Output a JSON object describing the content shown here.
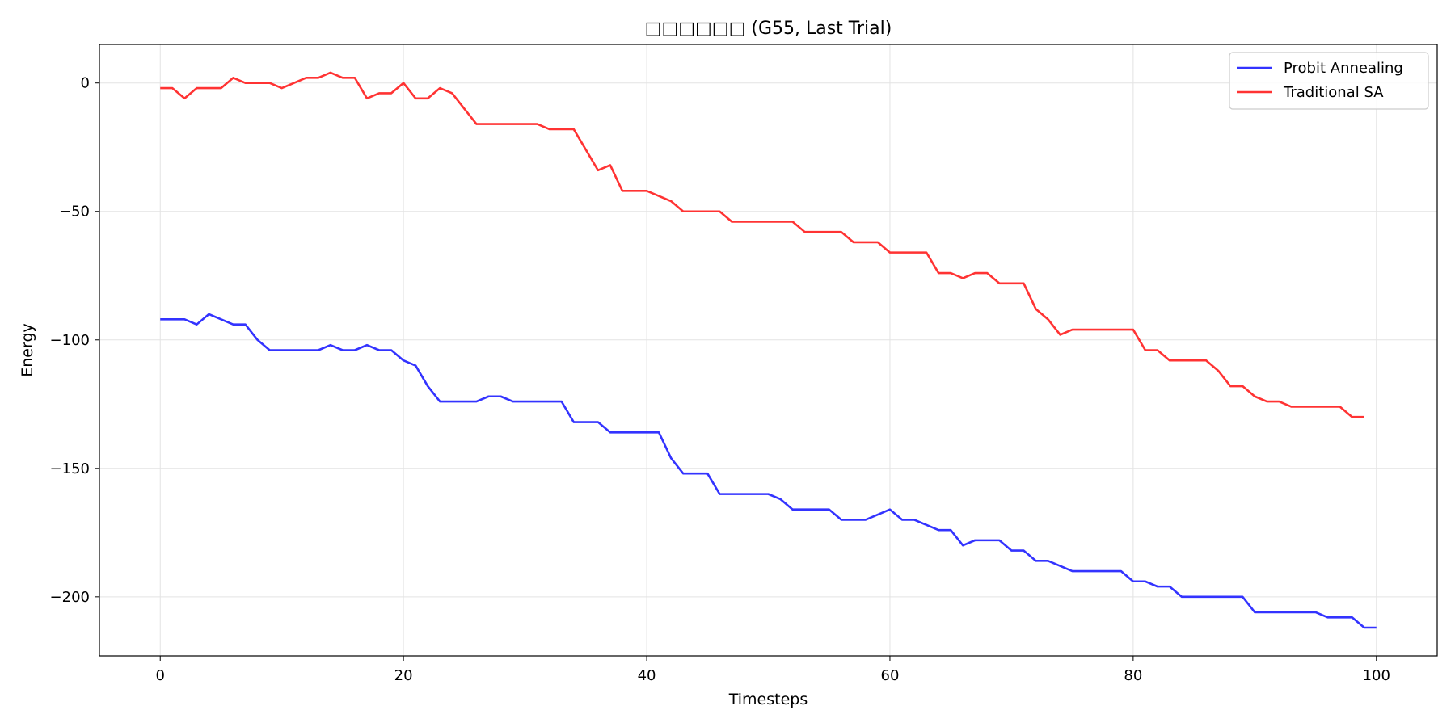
{
  "chart_data": {
    "type": "line",
    "title": "□□□□□□ (G55, Last Trial)",
    "xlabel": "Timesteps",
    "ylabel": "Energy",
    "xlim": [
      -5,
      105
    ],
    "ylim": [
      -223,
      15
    ],
    "xticks": [
      0,
      20,
      40,
      60,
      80,
      100
    ],
    "yticks": [
      0,
      -50,
      -100,
      -150,
      -200
    ],
    "ytick_labels": [
      "0",
      "−50",
      "−100",
      "−150",
      "−200"
    ],
    "grid": true,
    "legend_position": "top-right",
    "series": [
      {
        "name": "Probit Annealing",
        "color": "#3333ff",
        "x": [
          0,
          1,
          2,
          3,
          4,
          5,
          6,
          7,
          8,
          9,
          10,
          11,
          12,
          13,
          14,
          15,
          16,
          17,
          18,
          19,
          20,
          21,
          22,
          23,
          24,
          25,
          26,
          27,
          28,
          29,
          30,
          31,
          32,
          33,
          34,
          35,
          36,
          37,
          38,
          39,
          40,
          41,
          42,
          43,
          44,
          45,
          46,
          47,
          48,
          49,
          50,
          51,
          52,
          53,
          54,
          55,
          56,
          57,
          58,
          59,
          60,
          61,
          62,
          63,
          64,
          65,
          66,
          67,
          68,
          69,
          70,
          71,
          72,
          73,
          74,
          75,
          76,
          77,
          78,
          79,
          80,
          81,
          82,
          83,
          84,
          85,
          86,
          87,
          88,
          89,
          90,
          91,
          92,
          93,
          94,
          95,
          96,
          97,
          98,
          99,
          100
        ],
        "values": [
          -92,
          -92,
          -92,
          -94,
          -90,
          -92,
          -94,
          -94,
          -100,
          -104,
          -104,
          -104,
          -104,
          -104,
          -102,
          -104,
          -104,
          -102,
          -104,
          -104,
          -108,
          -110,
          -118,
          -124,
          -124,
          -124,
          -124,
          -122,
          -122,
          -124,
          -124,
          -124,
          -124,
          -124,
          -132,
          -132,
          -132,
          -136,
          -136,
          -136,
          -136,
          -136,
          -146,
          -152,
          -152,
          -152,
          -160,
          -160,
          -160,
          -160,
          -160,
          -162,
          -166,
          -166,
          -166,
          -166,
          -170,
          -170,
          -170,
          -168,
          -166,
          -170,
          -170,
          -172,
          -174,
          -174,
          -180,
          -178,
          -178,
          -178,
          -182,
          -182,
          -186,
          -186,
          -188,
          -190,
          -190,
          -190,
          -190,
          -190,
          -194,
          -194,
          -196,
          -196,
          -200,
          -200,
          -200,
          -200,
          -200,
          -200,
          -206,
          -206,
          -206,
          -206,
          -206,
          -206,
          -208,
          -208,
          -208,
          -212,
          -212
        ]
      },
      {
        "name": "Traditional SA",
        "color": "#ff3333",
        "x": [
          0,
          1,
          2,
          3,
          4,
          5,
          6,
          7,
          8,
          9,
          10,
          11,
          12,
          13,
          14,
          15,
          16,
          17,
          18,
          19,
          20,
          21,
          22,
          23,
          24,
          25,
          26,
          27,
          28,
          29,
          30,
          31,
          32,
          33,
          34,
          35,
          36,
          37,
          38,
          39,
          40,
          41,
          42,
          43,
          44,
          45,
          46,
          47,
          48,
          49,
          50,
          51,
          52,
          53,
          54,
          55,
          56,
          57,
          58,
          59,
          60,
          61,
          62,
          63,
          64,
          65,
          66,
          67,
          68,
          69,
          70,
          71,
          72,
          73,
          74,
          75,
          76,
          77,
          78,
          79,
          80,
          81,
          82,
          83,
          84,
          85,
          86,
          87,
          88,
          89,
          90,
          91,
          92,
          93,
          94,
          95,
          96,
          97,
          98,
          99
        ],
        "values": [
          -2,
          -2,
          -6,
          -2,
          -2,
          -2,
          2,
          0,
          0,
          0,
          -2,
          0,
          2,
          2,
          4,
          2,
          2,
          -6,
          -4,
          -4,
          0,
          -6,
          -6,
          -2,
          -4,
          -10,
          -16,
          -16,
          -16,
          -16,
          -16,
          -16,
          -18,
          -18,
          -18,
          -26,
          -34,
          -32,
          -42,
          -42,
          -42,
          -44,
          -46,
          -50,
          -50,
          -50,
          -50,
          -54,
          -54,
          -54,
          -54,
          -54,
          -54,
          -58,
          -58,
          -58,
          -58,
          -62,
          -62,
          -62,
          -66,
          -66,
          -66,
          -66,
          -74,
          -74,
          -76,
          -74,
          -74,
          -78,
          -78,
          -78,
          -88,
          -92,
          -98,
          -96,
          -96,
          -96,
          -96,
          -96,
          -96,
          -104,
          -104,
          -108,
          -108,
          -108,
          -108,
          -112,
          -118,
          -118,
          -122,
          -124,
          -124,
          -126,
          -126,
          -126,
          -126,
          -126,
          -130,
          -130
        ]
      }
    ]
  }
}
